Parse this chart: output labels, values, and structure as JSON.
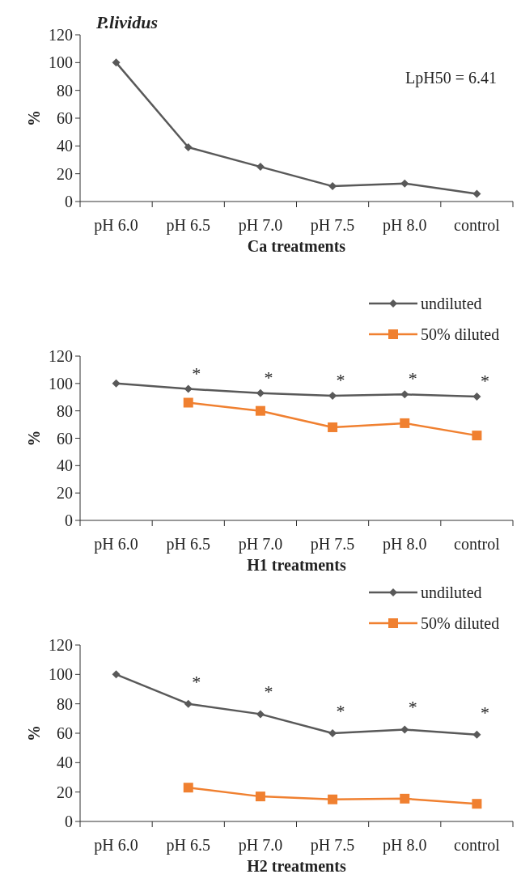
{
  "chart_data": [
    {
      "type": "line",
      "title": "P.lividus",
      "xlabel": "Ca treatments",
      "ylabel": "%",
      "categories": [
        "pH 6.0",
        "pH 6.5",
        "pH 7.0",
        "pH 7.5",
        "pH 8.0",
        "control"
      ],
      "series": [
        {
          "color": "#595959",
          "marker": "diamond",
          "values": [
            100,
            39,
            25,
            11,
            13,
            5.5
          ]
        }
      ],
      "ylim": [
        0,
        120
      ],
      "yticks": [
        0,
        20,
        40,
        60,
        80,
        100,
        120
      ],
      "grid": false,
      "legend": false,
      "annotations": [
        "LpH50 = 6.41"
      ]
    },
    {
      "type": "line",
      "xlabel": "H1 treatments",
      "ylabel": "%",
      "categories": [
        "pH 6.0",
        "pH 6.5",
        "pH 7.0",
        "pH 7.5",
        "pH 8.0",
        "control"
      ],
      "series": [
        {
          "name": "undiluted",
          "color": "#595959",
          "marker": "diamond",
          "values": [
            100,
            96,
            93,
            91,
            92,
            90.5
          ]
        },
        {
          "name": "50% diluted",
          "color": "#f08030",
          "marker": "square",
          "values": [
            null,
            86,
            80,
            68,
            71,
            62
          ]
        }
      ],
      "ylim": [
        0,
        120
      ],
      "yticks": [
        0,
        20,
        40,
        60,
        80,
        100,
        120
      ],
      "grid": false,
      "legend": "top right",
      "annotations": [
        "*",
        "*",
        "*",
        "*",
        "*"
      ]
    },
    {
      "type": "line",
      "xlabel": "H2 treatments",
      "ylabel": "%",
      "categories": [
        "pH 6.0",
        "pH 6.5",
        "pH 7.0",
        "pH 7.5",
        "pH 8.0",
        "control"
      ],
      "series": [
        {
          "name": "undiluted",
          "color": "#595959",
          "marker": "diamond",
          "values": [
            100,
            80,
            73,
            60,
            62.5,
            59
          ]
        },
        {
          "name": "50% diluted",
          "color": "#f08030",
          "marker": "square",
          "values": [
            null,
            23,
            17,
            15,
            15.5,
            12
          ]
        }
      ],
      "ylim": [
        0,
        120
      ],
      "yticks": [
        0,
        20,
        40,
        60,
        80,
        100,
        120
      ],
      "grid": false,
      "legend": "top right",
      "annotations": [
        "*",
        "*",
        "*",
        "*",
        "*"
      ]
    }
  ]
}
